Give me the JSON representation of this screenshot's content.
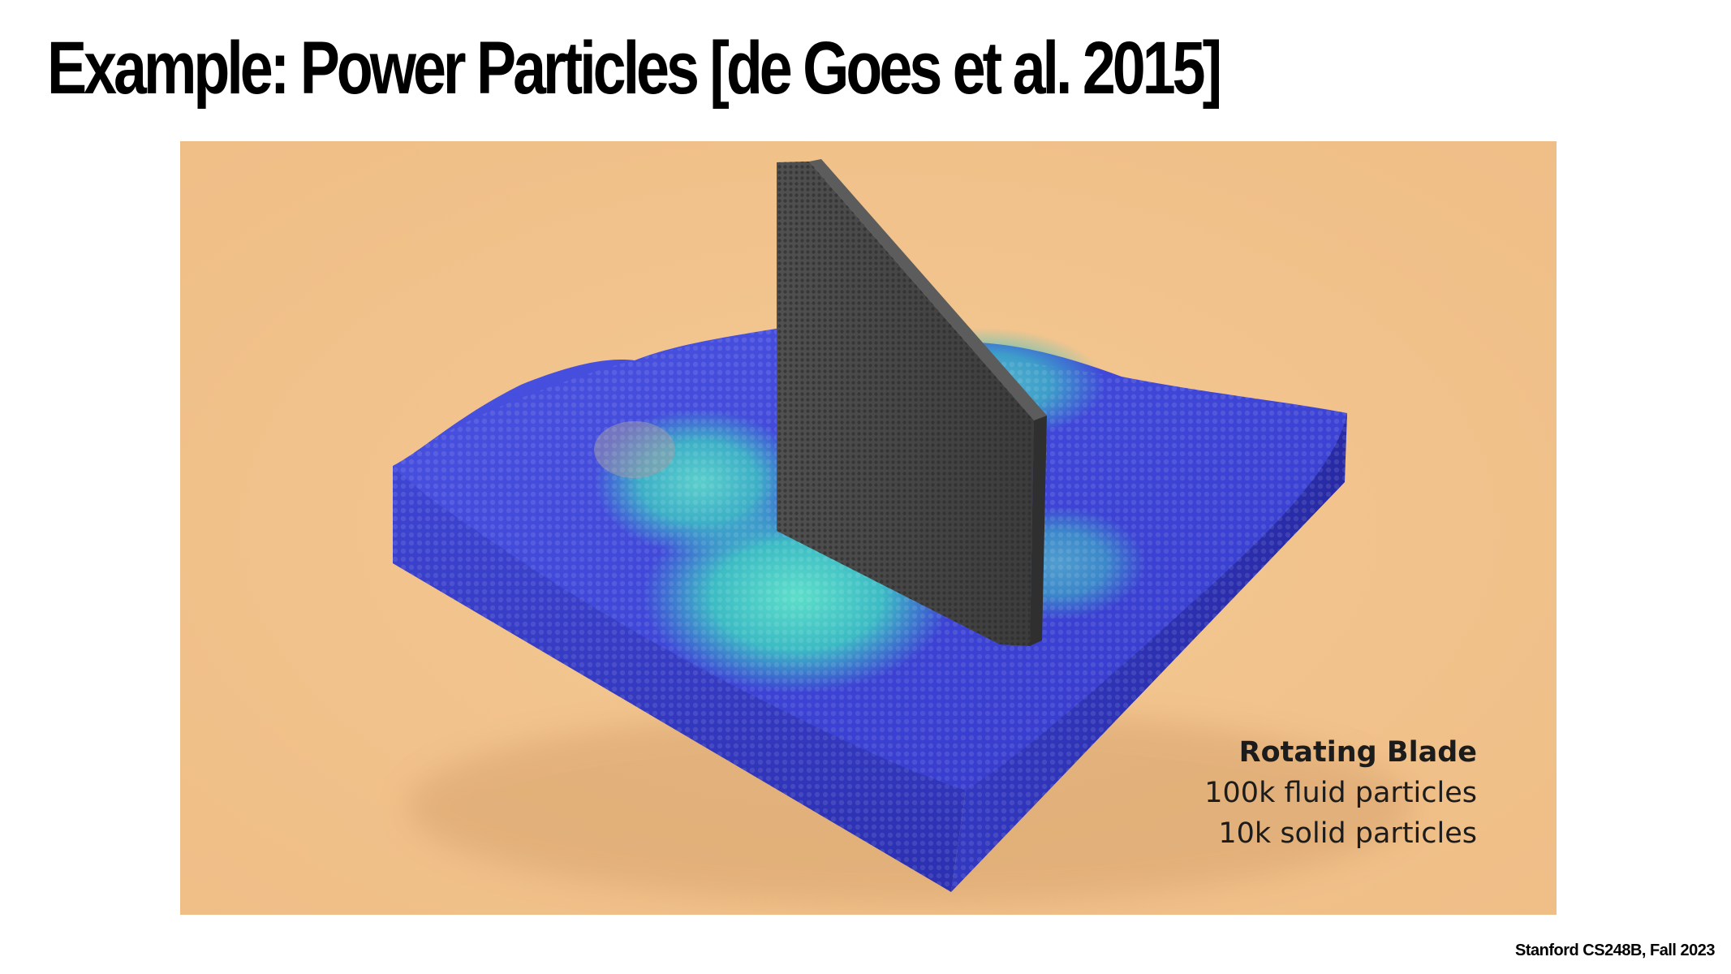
{
  "slide": {
    "title": "Example: Power Particles [de Goes et al. 2015]",
    "footer": "Stanford CS248B, Fall 2023"
  },
  "figure": {
    "caption_title": "Rotating Blade",
    "caption_lines": [
      "100k fluid particles",
      "10k solid particles"
    ],
    "colors": {
      "background": "#f2c48f",
      "fluid_deep": "#3b3fd6",
      "fluid_fast": "#40d6c0",
      "blade": "#454545"
    }
  }
}
